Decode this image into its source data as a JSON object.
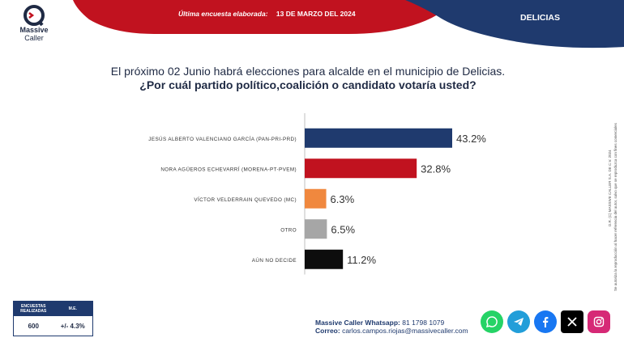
{
  "header": {
    "brand_line1": "Massive",
    "brand_line2": "Caller",
    "survey_label": "Última encuesta elaborada:",
    "survey_date": "13 DE MARZO DEL 2024",
    "region": "DELICIAS"
  },
  "question": {
    "line1": "El próximo 02 Junio habrá elecciones para alcalde en el municipio de Delicias.",
    "line2": "¿Por cuál partido político,coalición o candidato votaría usted?"
  },
  "chart_data": {
    "type": "bar",
    "orientation": "horizontal",
    "categories": [
      "JESÚS ALBERTO VALENCIANO GARCÍA (PAN-PRI-PRD)",
      "NORA AGÜEROS ECHEVARRÍ (MORENA-PT-PVEM)",
      "VÍCTOR VELDERRAIN QUEVEDO (MC)",
      "OTRO",
      "AÚN NO DECIDE"
    ],
    "values": [
      43.2,
      32.8,
      6.3,
      6.5,
      11.2
    ],
    "value_labels": [
      "43.2%",
      "32.8%",
      "6.3%",
      "6.5%",
      "11.2%"
    ],
    "colors": [
      "#1f3a6e",
      "#c1121f",
      "#f0883e",
      "#a6a6a6",
      "#0d0d0d"
    ],
    "xlim": [
      0,
      50
    ],
    "grid": false,
    "legend": "none"
  },
  "side_note": {
    "line1": "D.R. (C) MASSIVE CALLER S.A. DE C.V. 2024",
    "line2": "Se autoriza la reproducción al hacer referencia del autor, salvo que se reproduzca con fines comerciales"
  },
  "sample": {
    "col1_header": "ENCUESTAS REALIZADAS",
    "col2_header": "M.E.",
    "surveys": "600",
    "margin": "+/- 4.3%"
  },
  "contact": {
    "whatsapp_label": "Massive Caller Whatsapp:",
    "whatsapp_number": "81 1798 1079",
    "email_label": "Correo:",
    "email": "carlos.campos.riojas@massivecaller.com"
  },
  "social": {
    "icons": [
      "whatsapp-icon",
      "telegram-icon",
      "facebook-icon",
      "x-icon",
      "instagram-icon"
    ],
    "colors": [
      "#25d366",
      "#229ed9",
      "#1877f2",
      "#000000",
      "#d62976"
    ]
  },
  "colors": {
    "navy": "#1f3a6e",
    "red": "#c1121f"
  }
}
